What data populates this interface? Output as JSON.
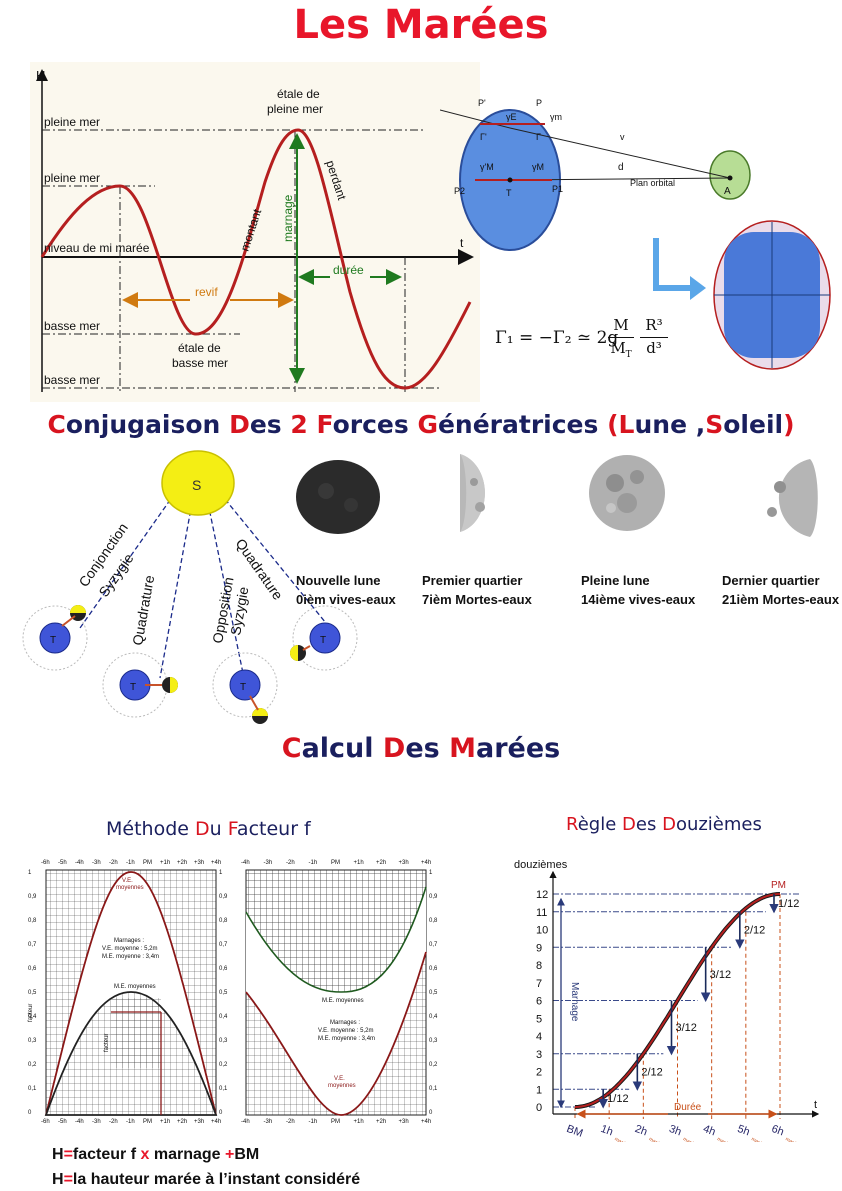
{
  "title": "Les Marées",
  "tide_diagram": {
    "axis_h": "H",
    "axis_t": "t",
    "pleine_mer_top": "pleine mer",
    "pleine_mer": "pleine mer",
    "niveau": "niveau de mi marée",
    "basse_mer_1": "basse mer",
    "basse_mer_2": "basse mer",
    "etale_pleine_1": "étale de",
    "etale_pleine_2": "pleine mer",
    "etale_basse_1": "étale de",
    "etale_basse_2": "basse mer",
    "montant": "montant",
    "marnage": "marnage",
    "perdant": "perdant",
    "revif": "revif",
    "duree": "durée"
  },
  "force_diagram": {
    "P_prime": "P'",
    "P": "P",
    "gamma_e": "γE",
    "gamma_m": "γm",
    "gamma_prime": "Γ'",
    "gamma": "Γ",
    "v": "v",
    "gamma_prime_M": "γ'M",
    "gamma_M": "γM",
    "d": "d",
    "P2": "P2",
    "T": "T",
    "P1": "P1",
    "plan": "Plan orbital",
    "A": "A"
  },
  "equation": {
    "lhs": "Γ₁ = −Γ₂ ≃ 2g",
    "num1": "M",
    "den1": "M",
    "den1_sub": "T",
    "num2": "R³",
    "den2": "d³"
  },
  "section2": {
    "parts": [
      {
        "t": "C",
        "red": true
      },
      {
        "t": "onjugaison ",
        "red": false
      },
      {
        "t": "D",
        "red": true
      },
      {
        "t": "es ",
        "red": false
      },
      {
        "t": "2 ",
        "red": true
      },
      {
        "t": "F",
        "red": true
      },
      {
        "t": "orces ",
        "red": false
      },
      {
        "t": "G",
        "red": true
      },
      {
        "t": "énératrices ",
        "red": false
      },
      {
        "t": "(",
        "red": true
      },
      {
        "t": "L",
        "red": true
      },
      {
        "t": "une ,",
        "red": false
      },
      {
        "t": "S",
        "red": true
      },
      {
        "t": "oleil",
        "red": false
      },
      {
        "t": ")",
        "red": true
      }
    ]
  },
  "orbit": {
    "sun": "S",
    "conjonction": "Conjonction",
    "syzygie_1": "Syzygie",
    "quadrature_1": "Quadrature",
    "opposition": "Opposition",
    "syzygie_2": "Syzygie",
    "quadrature_2": "Quadrature",
    "T": "T"
  },
  "moons": [
    {
      "name": "Nouvelle lune",
      "note": "0ièm vives-eaux"
    },
    {
      "name": "Premier quartier",
      "note": "7ièm Mortes-eaux"
    },
    {
      "name": "Pleine lune",
      "note": "14ième vives-eaux"
    },
    {
      "name": "Dernier quartier",
      "note": "21ièm Mortes-eaux"
    }
  ],
  "section3": {
    "parts": [
      {
        "t": "C",
        "red": true
      },
      {
        "t": "alcul ",
        "red": false
      },
      {
        "t": "D",
        "red": true
      },
      {
        "t": "es ",
        "red": false
      },
      {
        "t": "M",
        "red": true
      },
      {
        "t": "arées",
        "red": false
      }
    ]
  },
  "facteur": {
    "title_parts": [
      {
        "t": "Méthode ",
        "red": false
      },
      {
        "t": "D",
        "red": true
      },
      {
        "t": "u ",
        "red": false
      },
      {
        "t": "F",
        "red": true
      },
      {
        "t": "acteur f",
        "red": false
      }
    ],
    "hour_labels": [
      "-6h",
      "-5h",
      "-4h",
      "-3h",
      "-2h",
      "-1h",
      "PM",
      "+1h",
      "+2h",
      "+3h",
      "+4h"
    ],
    "hour_labels_right": [
      "-4h",
      "-3h",
      "-2h",
      "-1h",
      "PM",
      "+1h",
      "+2h",
      "+3h",
      "+4h"
    ],
    "y_ticks": [
      "1",
      "0,9",
      "0,8",
      "0,7",
      "0,6",
      "0,5",
      "0,4",
      "0,3",
      "0,2",
      "0,1",
      "0"
    ],
    "ve_top": "V.E.",
    "ve_top2": "moyennes",
    "marnages": "Marnages :",
    "ve_m": "V.E. moyenne : 5,2m",
    "me_m": "M.E. moyenne : 3,4m",
    "me_moy": "M.E. moyennes",
    "facteur_label": "facteur",
    "me_bottom": "M.E. moyennes",
    "marnages2": "Marnages :",
    "ve_m2": "V.E. moyenne : 5,2m",
    "me_m2": "M.E. moyenne : 3,4m",
    "ve_bottom": "V.E.",
    "ve_bottom2": "moyennes"
  },
  "douziemes": {
    "title_parts": [
      {
        "t": "R",
        "red": true
      },
      {
        "t": "ègle ",
        "red": false
      },
      {
        "t": "D",
        "red": true
      },
      {
        "t": "es ",
        "red": false
      },
      {
        "t": "D",
        "red": true
      },
      {
        "t": "ouzièmes",
        "red": false
      }
    ],
    "ylabel": "douzièmes",
    "y_values": [
      0,
      1,
      2,
      3,
      4,
      5,
      6,
      7,
      8,
      9,
      10,
      11,
      12
    ],
    "x_labels": [
      "BM",
      "1h",
      "2h",
      "3h",
      "4h",
      "5h",
      "6h"
    ],
    "x_sub": "marée",
    "pm": "PM",
    "marnage": "Marnage",
    "duree": "Durée",
    "t": "t",
    "fractions": [
      "1/12",
      "2/12",
      "3/12",
      "3/12",
      "2/12",
      "1/12"
    ],
    "cumulative": [
      0,
      1,
      3,
      6,
      9,
      11,
      12
    ]
  },
  "formulas": {
    "f1_parts": [
      {
        "t": "H",
        "red": false
      },
      {
        "t": "=",
        "red": true
      },
      {
        "t": "facteur f ",
        "red": false
      },
      {
        "t": "x",
        "red": true
      },
      {
        "t": " marnage ",
        "red": false
      },
      {
        "t": "+",
        "red": true
      },
      {
        "t": "BM",
        "red": false
      }
    ],
    "f2_parts": [
      {
        "t": "H",
        "red": false
      },
      {
        "t": "=",
        "red": true
      },
      {
        "t": "la hauteur marée à l’instant considéré",
        "red": false
      }
    ]
  }
}
